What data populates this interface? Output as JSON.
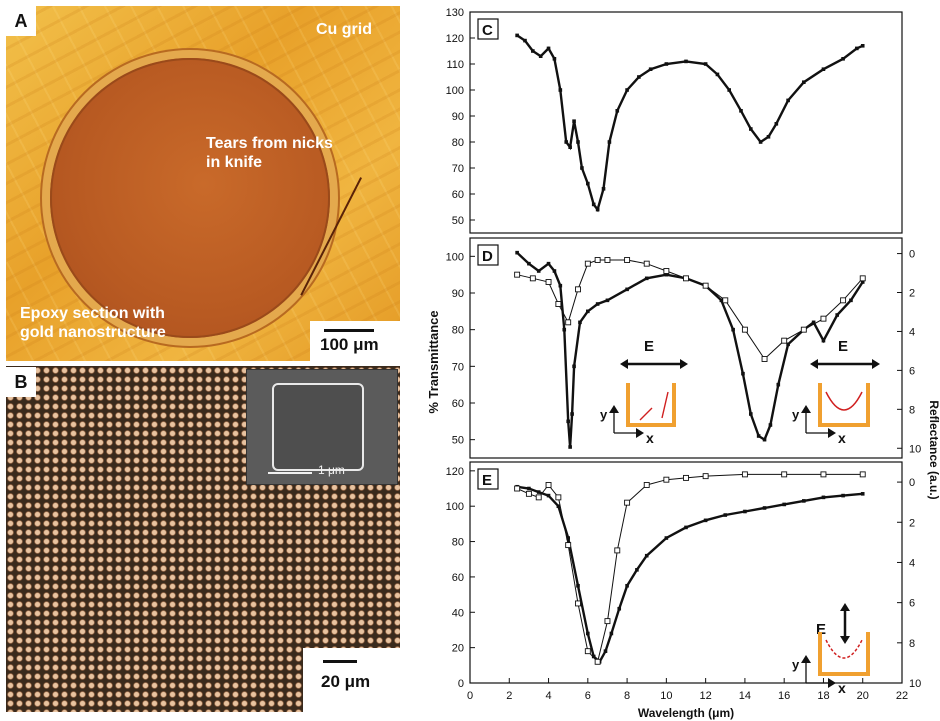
{
  "panels": {
    "a": {
      "letter": "A",
      "cu_grid_label": "Cu grid",
      "tears_label_line1": "Tears from nicks",
      "tears_label_line2": "in knife",
      "epoxy_label_line1": "Epoxy section with",
      "epoxy_label_line2": "gold nanostructure",
      "scale_label": "100 μm"
    },
    "b": {
      "letter": "B",
      "inset_scale_label": "1 μm",
      "scale_label": "20 μm"
    }
  },
  "chart_data": [
    {
      "panel": "C",
      "type": "line",
      "xlim": [
        0,
        22
      ],
      "ylim": [
        45,
        130
      ],
      "yticks": [
        50,
        60,
        70,
        80,
        90,
        100,
        110,
        120,
        130
      ],
      "series": [
        {
          "x": [
            2.4,
            2.8,
            3.2,
            3.6,
            4.0,
            4.3,
            4.6,
            4.9,
            5.1,
            5.3,
            5.5,
            5.7,
            6.0,
            6.3,
            6.5,
            6.8,
            7.1,
            7.5,
            8.0,
            8.6,
            9.2,
            10.0,
            11.0,
            12.0,
            12.6,
            13.2,
            13.8,
            14.3,
            14.8,
            15.2,
            15.6,
            16.2,
            17.0,
            18.0,
            19.0,
            19.7,
            20.0
          ],
          "values": [
            121,
            119,
            115,
            113,
            116,
            112,
            100,
            80,
            78,
            88,
            80,
            70,
            64,
            56,
            54,
            62,
            80,
            92,
            100,
            105,
            108,
            110,
            111,
            110,
            106,
            100,
            92,
            85,
            80,
            82,
            87,
            96,
            103,
            108,
            112,
            116,
            117
          ]
        }
      ]
    },
    {
      "panel": "D",
      "type": "line",
      "xlim": [
        0,
        22
      ],
      "ylim": [
        45,
        105
      ],
      "yticks": [
        50,
        60,
        70,
        80,
        90,
        100
      ],
      "right_axis": {
        "ylim": [
          10.5,
          -0.8
        ],
        "ticks": [
          0,
          2,
          4,
          6,
          8,
          10
        ]
      },
      "series": [
        {
          "marker": "filled",
          "x": [
            2.4,
            3.0,
            3.5,
            4.0,
            4.3,
            4.6,
            4.8,
            5.0,
            5.1,
            5.2,
            5.3,
            5.6,
            6.0,
            6.5,
            7.0,
            8.0,
            9.0,
            10.0,
            11.0,
            12.0,
            12.8,
            13.4,
            13.9,
            14.3,
            14.7,
            15.0,
            15.3,
            15.7,
            16.2,
            17.0,
            17.5,
            18.0,
            18.7,
            19.4,
            20.0
          ],
          "values": [
            101,
            98,
            96,
            98,
            96,
            92,
            80,
            55,
            48,
            57,
            70,
            82,
            85,
            87,
            88,
            91,
            94,
            95,
            94,
            92,
            88,
            80,
            68,
            57,
            51,
            50,
            54,
            65,
            76,
            80,
            82,
            77,
            84,
            88,
            93
          ]
        },
        {
          "marker": "open",
          "x": [
            2.4,
            3.2,
            4.0,
            4.5,
            5.0,
            5.5,
            6.0,
            6.5,
            7.0,
            8.0,
            9.0,
            10.0,
            11.0,
            12.0,
            13.0,
            14.0,
            15.0,
            16.0,
            17.0,
            18.0,
            19.0,
            20.0
          ],
          "values": [
            95,
            94,
            93,
            87,
            82,
            91,
            98,
            99,
            99,
            99,
            98,
            96,
            94,
            92,
            88,
            80,
            72,
            77,
            80,
            83,
            88,
            94
          ]
        }
      ],
      "annotation_label": "E"
    },
    {
      "panel": "E",
      "type": "line",
      "xlim": [
        0,
        22
      ],
      "ylim": [
        0,
        125
      ],
      "yticks": [
        0,
        20,
        40,
        60,
        80,
        100,
        120
      ],
      "right_axis": {
        "ylim": [
          10.0,
          -1.0
        ],
        "ticks": [
          0,
          2,
          4,
          6,
          8,
          10
        ]
      },
      "xlabel": "Wavelength (μm)",
      "xticks": [
        0,
        2,
        4,
        6,
        8,
        10,
        12,
        14,
        16,
        18,
        20,
        22
      ],
      "series": [
        {
          "marker": "filled",
          "x": [
            2.4,
            3.0,
            3.5,
            4.0,
            4.5,
            5.0,
            5.5,
            6.0,
            6.3,
            6.6,
            6.9,
            7.2,
            7.6,
            8.0,
            8.5,
            9.0,
            10.0,
            11.0,
            12.0,
            13.0,
            14.0,
            15.0,
            16.0,
            17.0,
            18.0,
            19.0,
            20.0
          ],
          "values": [
            111,
            110,
            108,
            106,
            100,
            82,
            55,
            28,
            15,
            12,
            18,
            28,
            42,
            55,
            64,
            72,
            82,
            88,
            92,
            95,
            97,
            99,
            101,
            103,
            105,
            106,
            107
          ]
        },
        {
          "marker": "open",
          "x": [
            2.4,
            3.0,
            3.5,
            4.0,
            4.5,
            5.0,
            5.5,
            6.0,
            6.5,
            7.0,
            7.5,
            8.0,
            9.0,
            10.0,
            11.0,
            12.0,
            14.0,
            16.0,
            18.0,
            20.0
          ],
          "values": [
            110,
            107,
            105,
            112,
            105,
            78,
            45,
            18,
            12,
            35,
            75,
            102,
            112,
            115,
            116,
            117,
            118,
            118,
            118,
            118
          ]
        }
      ],
      "annotation_label": "E"
    }
  ],
  "shared_axis_labels": {
    "ylabel_left": "% Transmittance",
    "ylabel_right": "Reflectance (a.u.)",
    "xlabel": "Wavelength (μm)",
    "inset_axis_y": "y",
    "inset_axis_x": "x"
  }
}
